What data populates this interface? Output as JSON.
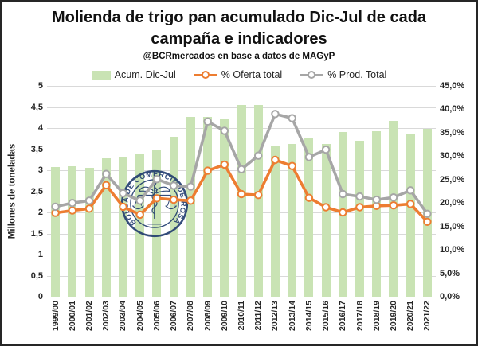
{
  "header": {
    "title": "Molienda de trigo pan acumulado Dic-Jul de cada campaña e indicadores",
    "subtitle": "@BCRmercados en base a datos de MAGyP"
  },
  "legend": [
    {
      "label": "Acum. Dic-Jul",
      "swatch": "bar",
      "color": "#c9e3b4"
    },
    {
      "label": "% Oferta total",
      "swatch": "line",
      "color": "#ed7d31"
    },
    {
      "label": "% Prod. Total",
      "swatch": "line",
      "color": "#a6a6a6"
    }
  ],
  "watermark": {
    "text": "BOLSA DE COMERCIO DE ROSARIO",
    "color": "#1f3a6e"
  },
  "chart_data": {
    "type": "bar",
    "subtype": "combo-bar-and-lines",
    "grid": true,
    "legend_position": "top",
    "categories": [
      "1999/00",
      "2000/01",
      "2001/02",
      "2002/03",
      "2003/04",
      "2004/05",
      "2005/06",
      "2006/07",
      "2007/08",
      "2008/09",
      "2009/10",
      "2010/11",
      "2011/12",
      "2012/13",
      "2013/14",
      "2014/15",
      "2015/16",
      "2016/17",
      "2017/18",
      "2018/19",
      "2019/20",
      "2020/21",
      "2021/22"
    ],
    "series": [
      {
        "name": "Acum. Dic-Jul",
        "type": "bar",
        "axis": "left",
        "color": "#c9e3b4",
        "values": [
          3.08,
          3.1,
          3.06,
          3.29,
          3.3,
          3.4,
          3.48,
          3.8,
          4.27,
          4.26,
          4.2,
          4.55,
          4.54,
          3.57,
          3.63,
          3.76,
          3.62,
          3.9,
          3.7,
          3.92,
          4.17,
          3.86,
          3.99
        ]
      },
      {
        "name": "% Oferta total",
        "type": "line",
        "axis": "right",
        "color": "#ed7d31",
        "values": [
          17.9,
          18.4,
          18.8,
          23.8,
          19.2,
          17.5,
          21.0,
          20.7,
          20.5,
          26.9,
          28.2,
          21.9,
          21.7,
          29.2,
          27.9,
          21.1,
          19.1,
          18.0,
          19.1,
          19.4,
          19.5,
          19.8,
          16.0
        ]
      },
      {
        "name": "% Prod. Total",
        "type": "line",
        "axis": "right",
        "color": "#a6a6a6",
        "values": [
          19.2,
          20.0,
          20.5,
          26.2,
          22.1,
          20.5,
          25.1,
          23.7,
          23.5,
          37.4,
          35.4,
          27.2,
          30.1,
          39.0,
          38.1,
          29.8,
          31.4,
          21.9,
          21.4,
          20.7,
          21.2,
          22.7,
          17.7
        ]
      }
    ],
    "left_axis": {
      "title": "Millones de toneladas",
      "min": 0,
      "max": 5,
      "ticks": [
        "5",
        "4,5",
        "4",
        "3,5",
        "3",
        "2,5",
        "2",
        "1,5",
        "1",
        "0,5",
        "0"
      ]
    },
    "right_axis": {
      "title": "",
      "min": 0,
      "max": 45,
      "ticks": [
        "45,0%",
        "40,0%",
        "35,0%",
        "30,0%",
        "25,0%",
        "20,0%",
        "15,0%",
        "10,0%",
        "5,0%",
        "0,0%"
      ]
    }
  }
}
